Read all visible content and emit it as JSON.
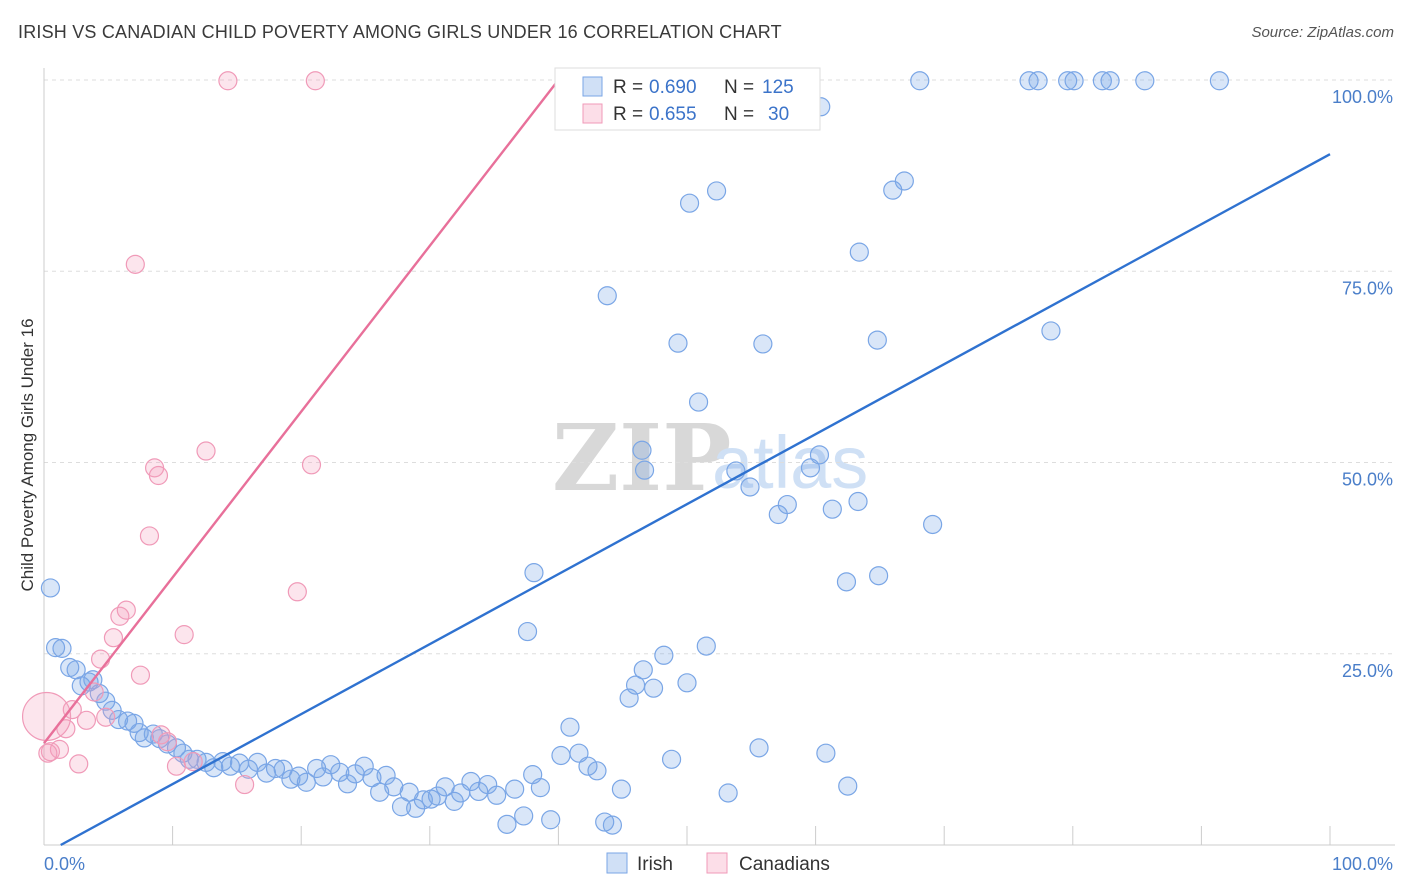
{
  "title": "IRISH VS CANADIAN CHILD POVERTY AMONG GIRLS UNDER 16 CORRELATION CHART",
  "source": "Source: ZipAtlas.com",
  "watermark": {
    "zip": "ZIP",
    "atlas": "atlas"
  },
  "colors": {
    "irish_fill": "rgba(120,165,230,0.28)",
    "irish_stroke": "#7aa6e6",
    "irish_line": "#2f72d0",
    "canadian_fill": "rgba(245,160,190,0.28)",
    "canadian_stroke": "#f09ab8",
    "canadian_line": "#e8709a",
    "tick": "#4a7ec9",
    "grid": "#dddddd"
  },
  "legend_top": {
    "rows": [
      {
        "series": "Irish",
        "r_label": "R =",
        "r_value": "0.690",
        "n_label": "N =",
        "n_value": "125"
      },
      {
        "series": "Canadians",
        "r_label": "R =",
        "r_value": "0.655",
        "n_label": "N =",
        "n_value": "30"
      }
    ]
  },
  "legend_bottom": [
    "Irish",
    "Canadians"
  ],
  "chart_data": {
    "type": "scatter",
    "xlabel": "",
    "ylabel": "Child Poverty Among Girls Under 16",
    "xlim": [
      0,
      100
    ],
    "ylim": [
      0,
      100
    ],
    "x_tick_labels": [
      "0.0%",
      "100.0%"
    ],
    "y_ticks": [
      25,
      50,
      75,
      100
    ],
    "y_tick_labels": [
      "25.0%",
      "50.0%",
      "75.0%",
      "100.0%"
    ],
    "grid": true,
    "legend_position": "top-center",
    "series": [
      {
        "name": "Irish",
        "trend": {
          "x": [
            1.3,
            100
          ],
          "y": [
            0,
            90.3
          ]
        },
        "points": [
          [
            0.5,
            33.6
          ],
          [
            0.9,
            25.8
          ],
          [
            1.4,
            25.7
          ],
          [
            2.0,
            23.2
          ],
          [
            2.5,
            22.9
          ],
          [
            2.9,
            20.8
          ],
          [
            3.5,
            21.3
          ],
          [
            3.8,
            21.6
          ],
          [
            4.3,
            19.8
          ],
          [
            4.8,
            18.8
          ],
          [
            5.3,
            17.6
          ],
          [
            5.8,
            16.4
          ],
          [
            6.5,
            16.2
          ],
          [
            7.0,
            15.9
          ],
          [
            7.4,
            14.7
          ],
          [
            7.8,
            14.0
          ],
          [
            8.5,
            14.5
          ],
          [
            9.0,
            13.9
          ],
          [
            9.6,
            13.2
          ],
          [
            10.3,
            12.7
          ],
          [
            10.8,
            12.0
          ],
          [
            11.3,
            11.2
          ],
          [
            11.9,
            11.2
          ],
          [
            12.6,
            10.8
          ],
          [
            13.2,
            10.1
          ],
          [
            13.9,
            10.9
          ],
          [
            14.5,
            10.3
          ],
          [
            15.2,
            10.7
          ],
          [
            15.9,
            9.9
          ],
          [
            16.6,
            10.8
          ],
          [
            17.3,
            9.4
          ],
          [
            18.0,
            10.0
          ],
          [
            18.6,
            9.9
          ],
          [
            19.2,
            8.6
          ],
          [
            19.8,
            9.0
          ],
          [
            20.4,
            8.2
          ],
          [
            21.2,
            10.0
          ],
          [
            21.7,
            8.9
          ],
          [
            22.3,
            10.5
          ],
          [
            23.0,
            9.5
          ],
          [
            23.6,
            8.0
          ],
          [
            24.2,
            9.3
          ],
          [
            24.9,
            10.3
          ],
          [
            25.5,
            8.8
          ],
          [
            26.1,
            6.9
          ],
          [
            26.6,
            9.1
          ],
          [
            27.2,
            7.6
          ],
          [
            27.8,
            5.0
          ],
          [
            28.4,
            6.9
          ],
          [
            28.9,
            4.8
          ],
          [
            29.5,
            5.9
          ],
          [
            30.1,
            6.0
          ],
          [
            30.6,
            6.4
          ],
          [
            31.2,
            7.6
          ],
          [
            31.9,
            5.7
          ],
          [
            32.4,
            6.8
          ],
          [
            33.2,
            8.3
          ],
          [
            33.8,
            7.0
          ],
          [
            34.5,
            7.9
          ],
          [
            35.2,
            6.5
          ],
          [
            36.0,
            2.7
          ],
          [
            36.6,
            7.3
          ],
          [
            37.3,
            3.8
          ],
          [
            38.0,
            9.2
          ],
          [
            38.6,
            7.5
          ],
          [
            39.4,
            3.3
          ],
          [
            40.2,
            11.7
          ],
          [
            40.9,
            15.4
          ],
          [
            41.6,
            12.0
          ],
          [
            42.3,
            10.3
          ],
          [
            43.0,
            9.7
          ],
          [
            43.6,
            3.0
          ],
          [
            44.2,
            2.6
          ],
          [
            44.9,
            7.3
          ],
          [
            45.5,
            19.2
          ],
          [
            46.0,
            20.9
          ],
          [
            46.6,
            22.9
          ],
          [
            47.4,
            20.5
          ],
          [
            48.2,
            24.8
          ],
          [
            48.8,
            11.2
          ],
          [
            50.0,
            21.2
          ],
          [
            51.5,
            26.0
          ],
          [
            53.2,
            6.8
          ],
          [
            55.6,
            12.7
          ],
          [
            60.8,
            12.0
          ],
          [
            62.5,
            7.7
          ],
          [
            38.1,
            35.6
          ],
          [
            37.6,
            27.9
          ],
          [
            43.8,
            71.8
          ],
          [
            46.5,
            51.6
          ],
          [
            46.7,
            49.0
          ],
          [
            49.3,
            65.6
          ],
          [
            50.9,
            57.9
          ],
          [
            53.8,
            48.9
          ],
          [
            54.9,
            46.8
          ],
          [
            57.1,
            43.2
          ],
          [
            57.8,
            44.5
          ],
          [
            59.6,
            49.3
          ],
          [
            60.3,
            51.0
          ],
          [
            61.3,
            43.9
          ],
          [
            62.4,
            34.4
          ],
          [
            63.3,
            44.9
          ],
          [
            64.9,
            35.2
          ],
          [
            69.1,
            41.9
          ],
          [
            50.2,
            83.9
          ],
          [
            52.3,
            85.5
          ],
          [
            55.2,
            96.5
          ],
          [
            55.8,
            99.8
          ],
          [
            63.4,
            77.5
          ],
          [
            64.8,
            66.0
          ],
          [
            66.0,
            85.6
          ],
          [
            68.1,
            99.9
          ],
          [
            76.6,
            99.9
          ],
          [
            79.6,
            99.9
          ],
          [
            80.1,
            99.9
          ],
          [
            82.3,
            99.9
          ],
          [
            82.9,
            99.9
          ],
          [
            85.6,
            99.9
          ],
          [
            91.4,
            99.9
          ],
          [
            55.9,
            65.5
          ],
          [
            58.7,
            99.9
          ],
          [
            60.4,
            96.5
          ],
          [
            66.9,
            86.8
          ],
          [
            78.3,
            67.2
          ],
          [
            77.3,
            99.9
          ]
        ]
      },
      {
        "name": "Canadians",
        "trend": {
          "x": [
            0,
            40.0
          ],
          "y": [
            13.3,
            100
          ]
        },
        "points": [
          [
            0.5,
            12.2
          ],
          [
            1.2,
            12.5
          ],
          [
            1.7,
            15.2
          ],
          [
            2.2,
            17.7
          ],
          [
            2.7,
            10.6
          ],
          [
            3.3,
            16.3
          ],
          [
            3.9,
            20.0
          ],
          [
            4.4,
            24.3
          ],
          [
            4.8,
            16.7
          ],
          [
            5.4,
            27.1
          ],
          [
            5.9,
            29.9
          ],
          [
            6.4,
            30.7
          ],
          [
            7.1,
            75.9
          ],
          [
            7.5,
            22.2
          ],
          [
            8.2,
            40.4
          ],
          [
            8.6,
            49.3
          ],
          [
            8.9,
            48.3
          ],
          [
            9.1,
            14.4
          ],
          [
            9.6,
            13.5
          ],
          [
            10.3,
            10.3
          ],
          [
            10.9,
            27.5
          ],
          [
            11.6,
            10.9
          ],
          [
            12.6,
            51.5
          ],
          [
            14.3,
            99.9
          ],
          [
            15.6,
            7.9
          ],
          [
            19.7,
            33.1
          ],
          [
            20.8,
            49.7
          ],
          [
            21.1,
            99.9
          ],
          [
            0.2,
            16.8
          ],
          [
            0.3,
            12.0
          ]
        ]
      }
    ]
  }
}
